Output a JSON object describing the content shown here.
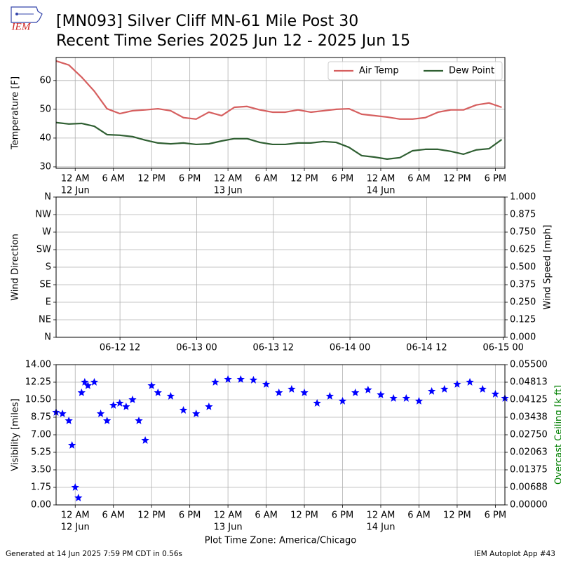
{
  "title": "[MN093] Silver Cliff MN-61 Mile Post 30",
  "subtitle": "Recent Time Series 2025 Jun 12 - 2025 Jun 15",
  "logo_text": "IEM",
  "footer_left": "Generated at 14 Jun 2025 7:59 PM CDT in 0.56s",
  "footer_right": "IEM Autoplot App #43",
  "chart_data": [
    {
      "type": "line",
      "ylabel": "Temperature [F]",
      "grid": true,
      "legend": "upper right",
      "xlim": [
        "2025-06-11T21:00",
        "2025-06-14T19:30"
      ],
      "ylim": [
        29.5,
        68
      ],
      "yticks": [
        30,
        40,
        50,
        60
      ],
      "xticks": [
        {
          "value": "2025-06-12T00:00",
          "label": "12 AM",
          "date": "12 Jun"
        },
        {
          "value": "2025-06-12T06:00",
          "label": "6 AM"
        },
        {
          "value": "2025-06-12T12:00",
          "label": "12 PM"
        },
        {
          "value": "2025-06-12T18:00",
          "label": "6 PM"
        },
        {
          "value": "2025-06-13T00:00",
          "label": "12 AM",
          "date": "13 Jun"
        },
        {
          "value": "2025-06-13T06:00",
          "label": "6 AM"
        },
        {
          "value": "2025-06-13T12:00",
          "label": "12 PM"
        },
        {
          "value": "2025-06-13T18:00",
          "label": "6 PM"
        },
        {
          "value": "2025-06-14T00:00",
          "label": "12 AM",
          "date": "14 Jun"
        },
        {
          "value": "2025-06-14T06:00",
          "label": "6 AM"
        },
        {
          "value": "2025-06-14T12:00",
          "label": "12 PM"
        },
        {
          "value": "2025-06-14T18:00",
          "label": "6 PM"
        }
      ],
      "x": [
        "2025-06-11T21:00",
        "2025-06-11T23:00",
        "2025-06-12T01:00",
        "2025-06-12T03:00",
        "2025-06-12T05:00",
        "2025-06-12T07:00",
        "2025-06-12T09:00",
        "2025-06-12T11:00",
        "2025-06-12T13:00",
        "2025-06-12T15:00",
        "2025-06-12T17:00",
        "2025-06-12T19:00",
        "2025-06-12T21:00",
        "2025-06-12T23:00",
        "2025-06-13T01:00",
        "2025-06-13T03:00",
        "2025-06-13T05:00",
        "2025-06-13T07:00",
        "2025-06-13T09:00",
        "2025-06-13T11:00",
        "2025-06-13T13:00",
        "2025-06-13T15:00",
        "2025-06-13T17:00",
        "2025-06-13T19:00",
        "2025-06-13T21:00",
        "2025-06-13T23:00",
        "2025-06-14T01:00",
        "2025-06-14T03:00",
        "2025-06-14T05:00",
        "2025-06-14T07:00",
        "2025-06-14T09:00",
        "2025-06-14T11:00",
        "2025-06-14T13:00",
        "2025-06-14T15:00",
        "2025-06-14T17:00",
        "2025-06-14T19:00"
      ],
      "series": [
        {
          "name": "Air Temp",
          "color": "#d65f5f",
          "values": [
            66.8,
            65.4,
            61.2,
            56.3,
            50.2,
            48.5,
            49.5,
            49.8,
            50.2,
            49.5,
            47.1,
            46.6,
            49.0,
            47.8,
            50.7,
            51.0,
            49.8,
            49.0,
            49.0,
            49.8,
            49.0,
            49.5,
            50.0,
            50.2,
            48.3,
            47.8,
            47.3,
            46.6,
            46.6,
            47.1,
            49.0,
            49.8,
            49.8,
            51.5,
            52.2,
            50.7
          ]
        },
        {
          "name": "Dew Point",
          "color": "#2f5f32",
          "values": [
            45.4,
            44.9,
            45.1,
            44.1,
            41.2,
            41.0,
            40.5,
            39.3,
            38.3,
            38.0,
            38.3,
            37.8,
            38.0,
            39.0,
            39.8,
            39.8,
            38.5,
            37.8,
            37.8,
            38.3,
            38.3,
            38.8,
            38.5,
            36.8,
            33.9,
            33.4,
            32.7,
            33.2,
            35.6,
            36.1,
            36.1,
            35.4,
            34.4,
            35.9,
            36.3,
            39.5
          ]
        }
      ]
    },
    {
      "type": "line",
      "ylabel": "Wind Direction",
      "y2label": "Wind Speed [mph]",
      "grid": true,
      "xlim": [
        "2025-06-12T02:00",
        "2025-06-15T00:15"
      ],
      "ylim": [
        0,
        360
      ],
      "yticks": [
        {
          "value": 0,
          "label": "N"
        },
        {
          "value": 45,
          "label": "NE"
        },
        {
          "value": 90,
          "label": "E"
        },
        {
          "value": 135,
          "label": "SE"
        },
        {
          "value": 180,
          "label": "S"
        },
        {
          "value": 225,
          "label": "SW"
        },
        {
          "value": 270,
          "label": "W"
        },
        {
          "value": 315,
          "label": "NW"
        },
        {
          "value": 360,
          "label": "N"
        }
      ],
      "y2lim": [
        0,
        1
      ],
      "y2ticks": [
        {
          "value": 0,
          "label": "0.000"
        },
        {
          "value": 0.125,
          "label": "0.125"
        },
        {
          "value": 0.25,
          "label": "0.250"
        },
        {
          "value": 0.375,
          "label": "0.375"
        },
        {
          "value": 0.5,
          "label": "0.500"
        },
        {
          "value": 0.625,
          "label": "0.625"
        },
        {
          "value": 0.75,
          "label": "0.750"
        },
        {
          "value": 0.875,
          "label": "0.875"
        },
        {
          "value": 1,
          "label": "1.000"
        }
      ],
      "xticks": [
        {
          "value": "2025-06-12T12:00",
          "label": "06-12 12"
        },
        {
          "value": "2025-06-13T00:00",
          "label": "06-13 00"
        },
        {
          "value": "2025-06-13T12:00",
          "label": "06-13 12"
        },
        {
          "value": "2025-06-14T00:00",
          "label": "06-14 00"
        },
        {
          "value": "2025-06-14T12:00",
          "label": "06-14 12"
        },
        {
          "value": "2025-06-15T00:00",
          "label": "06-15 00"
        }
      ],
      "x": [],
      "series": []
    },
    {
      "type": "scatter",
      "ylabel": "Visibility [miles]",
      "y2label": "Overcast Ceiling [k ft]",
      "y2color": "#008000",
      "grid": true,
      "xlabel": "Plot Time Zone: America/Chicago",
      "xlim": [
        "2025-06-11T21:00",
        "2025-06-14T19:30"
      ],
      "ylim": [
        0,
        14
      ],
      "yticks": [
        {
          "value": 0,
          "label": "0.00"
        },
        {
          "value": 1.75,
          "label": "1.75"
        },
        {
          "value": 3.5,
          "label": "3.50"
        },
        {
          "value": 5.25,
          "label": "5.25"
        },
        {
          "value": 7,
          "label": "7.00"
        },
        {
          "value": 8.75,
          "label": "8.75"
        },
        {
          "value": 10.5,
          "label": "10.50"
        },
        {
          "value": 12.25,
          "label": "12.25"
        },
        {
          "value": 14,
          "label": "14.00"
        }
      ],
      "y2lim": [
        0,
        0.055
      ],
      "y2ticks": [
        {
          "value": 0,
          "label": "0.00000"
        },
        {
          "value": 0.006875,
          "label": "0.00688"
        },
        {
          "value": 0.01375,
          "label": "0.01375"
        },
        {
          "value": 0.020625,
          "label": "0.02063"
        },
        {
          "value": 0.0275,
          "label": "0.02750"
        },
        {
          "value": 0.034375,
          "label": "0.03438"
        },
        {
          "value": 0.04125,
          "label": "0.04125"
        },
        {
          "value": 0.048125,
          "label": "0.04813"
        },
        {
          "value": 0.055,
          "label": "0.05500"
        }
      ],
      "xticks": [
        {
          "value": "2025-06-12T00:00",
          "label": "12 AM",
          "date": "12 Jun"
        },
        {
          "value": "2025-06-12T06:00",
          "label": "6 AM"
        },
        {
          "value": "2025-06-12T12:00",
          "label": "12 PM"
        },
        {
          "value": "2025-06-12T18:00",
          "label": "6 PM"
        },
        {
          "value": "2025-06-13T00:00",
          "label": "12 AM",
          "date": "13 Jun"
        },
        {
          "value": "2025-06-13T06:00",
          "label": "6 AM"
        },
        {
          "value": "2025-06-13T12:00",
          "label": "12 PM"
        },
        {
          "value": "2025-06-13T18:00",
          "label": "6 PM"
        },
        {
          "value": "2025-06-14T00:00",
          "label": "12 AM",
          "date": "14 Jun"
        },
        {
          "value": "2025-06-14T06:00",
          "label": "6 AM"
        },
        {
          "value": "2025-06-14T12:00",
          "label": "12 PM"
        },
        {
          "value": "2025-06-14T18:00",
          "label": "6 PM"
        }
      ],
      "x": [
        "2025-06-11T21:00",
        "2025-06-11T22:00",
        "2025-06-11T23:00",
        "2025-06-11T23:30",
        "2025-06-12T00:00",
        "2025-06-12T00:30",
        "2025-06-12T01:00",
        "2025-06-12T01:30",
        "2025-06-12T02:00",
        "2025-06-12T03:00",
        "2025-06-12T04:00",
        "2025-06-12T05:00",
        "2025-06-12T06:00",
        "2025-06-12T07:00",
        "2025-06-12T08:00",
        "2025-06-12T09:00",
        "2025-06-12T10:00",
        "2025-06-12T11:00",
        "2025-06-12T12:00",
        "2025-06-12T13:00",
        "2025-06-12T15:00",
        "2025-06-12T17:00",
        "2025-06-12T19:00",
        "2025-06-12T21:00",
        "2025-06-12T22:00",
        "2025-06-13T00:00",
        "2025-06-13T02:00",
        "2025-06-13T04:00",
        "2025-06-13T06:00",
        "2025-06-13T08:00",
        "2025-06-13T10:00",
        "2025-06-13T12:00",
        "2025-06-13T14:00",
        "2025-06-13T16:00",
        "2025-06-13T18:00",
        "2025-06-13T20:00",
        "2025-06-13T22:00",
        "2025-06-14T00:00",
        "2025-06-14T02:00",
        "2025-06-14T04:00",
        "2025-06-14T06:00",
        "2025-06-14T08:00",
        "2025-06-14T10:00",
        "2025-06-14T12:00",
        "2025-06-14T14:00",
        "2025-06-14T16:00",
        "2025-06-14T18:00",
        "2025-06-14T19:30"
      ],
      "series": [
        {
          "color": "#0000ff",
          "values": [
            9.24,
            9.1,
            8.4,
            5.95,
            1.75,
            0.7,
            11.2,
            12.25,
            11.9,
            12.25,
            9.1,
            8.4,
            9.94,
            10.15,
            9.8,
            10.5,
            8.4,
            6.44,
            11.9,
            11.2,
            10.85,
            9.45,
            9.1,
            9.8,
            12.25,
            12.53,
            12.53,
            12.46,
            12.04,
            11.2,
            11.55,
            11.2,
            10.15,
            10.85,
            10.36,
            11.2,
            11.48,
            10.99,
            10.64,
            10.64,
            10.36,
            11.34,
            11.55,
            12.04,
            12.25,
            11.55,
            11.06,
            10.64
          ]
        }
      ]
    }
  ]
}
